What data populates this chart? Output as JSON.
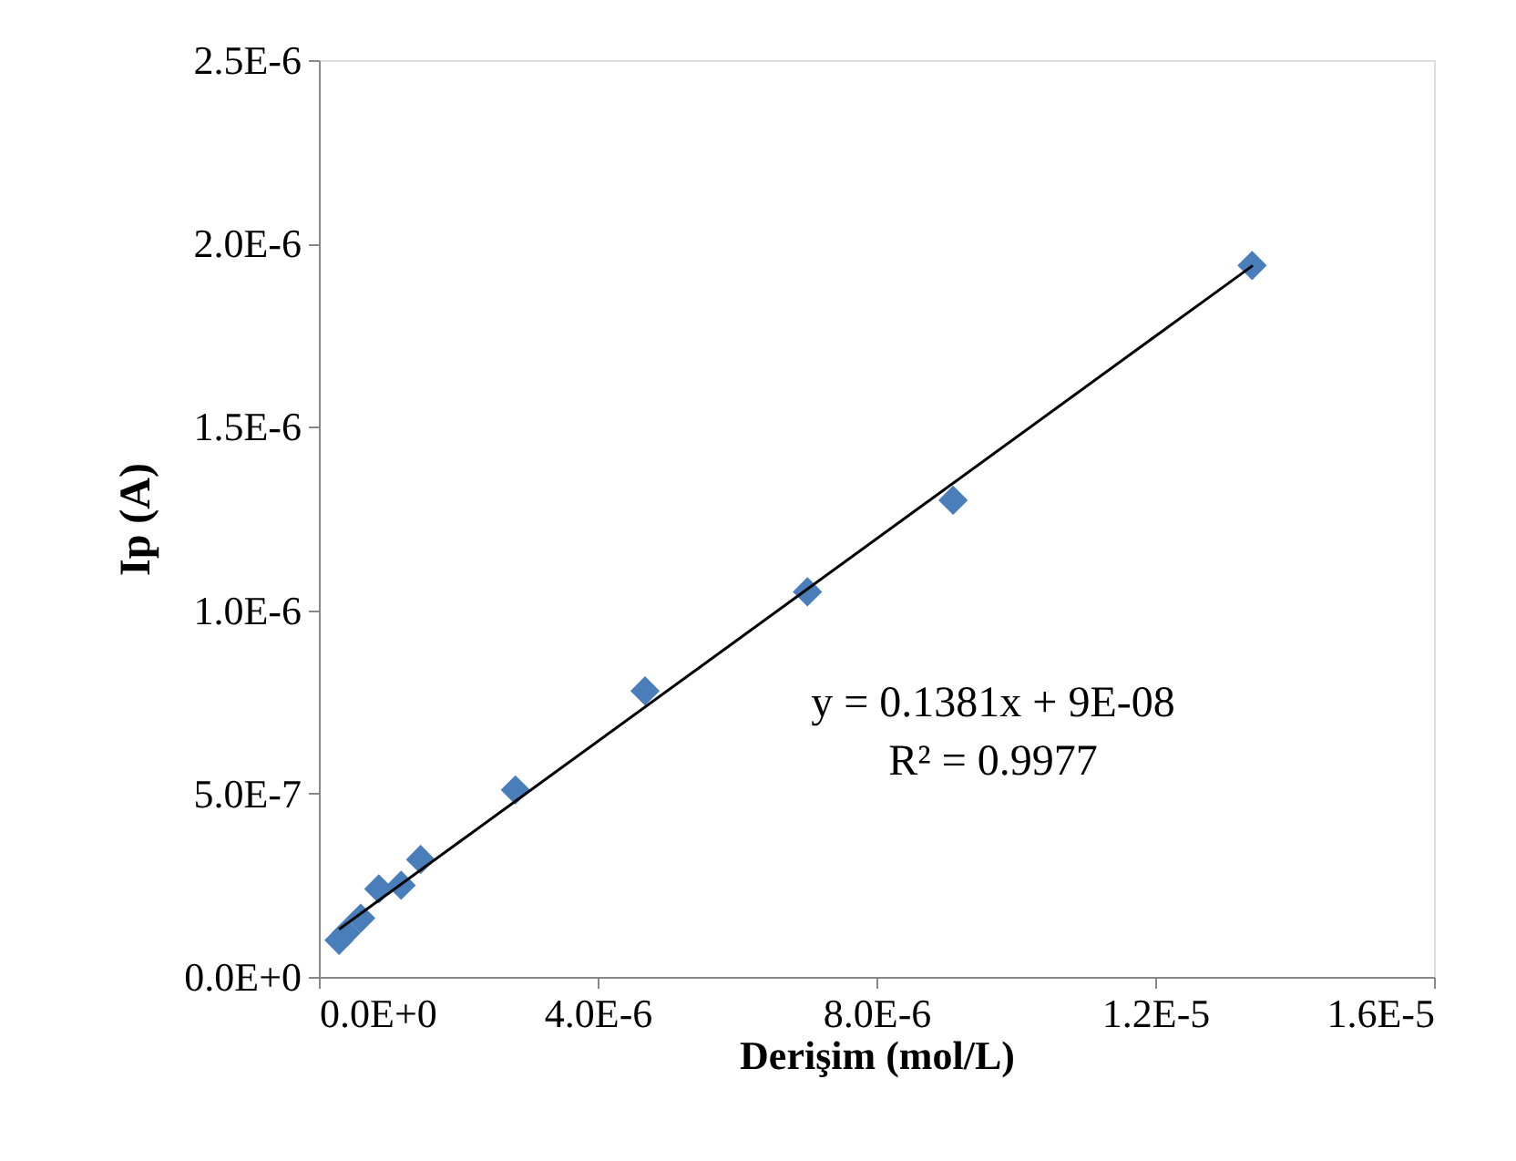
{
  "chart_data": {
    "type": "scatter",
    "xlabel": "Derişim (mol/L)",
    "ylabel": "Ip (A)",
    "series": [
      {
        "color": "#4a7ebb",
        "marker": "diamond",
        "x": [
          2.9e-07,
          3.9e-07,
          6e-07,
          8.6e-07,
          1.18e-06,
          1.46e-06,
          2.82e-06,
          4.68e-06,
          7.01e-06,
          9.1e-06,
          1.339e-05
        ],
        "values": [
          1e-07,
          1.2e-07,
          1.6e-07,
          2.4e-07,
          2.5e-07,
          3.2e-07,
          5.1e-07,
          7.8e-07,
          1.05e-06,
          1.3e-06,
          1.94e-06
        ]
      },
      {
        "type": "line",
        "color": "#000000",
        "marker": "none",
        "x": [
          2.9e-07,
          1.34e-05
        ],
        "values": [
          1.3e-07,
          1.94e-06
        ]
      }
    ],
    "xlim": [
      0,
      1.6e-05
    ],
    "xticks": [
      {
        "value": 0,
        "label": "0.0E+0"
      },
      {
        "value": 4e-06,
        "label": "4.0E-6"
      },
      {
        "value": 8e-06,
        "label": "8.0E-6"
      },
      {
        "value": 1.2e-05,
        "label": "1.2E-5"
      },
      {
        "value": 1.6e-05,
        "label": "1.6E-5"
      }
    ],
    "ylim": [
      0,
      2.5e-06
    ],
    "yticks": [
      {
        "value": 0,
        "label": "0.0E+0"
      },
      {
        "value": 5e-07,
        "label": "5.0E-7"
      },
      {
        "value": 1e-06,
        "label": "1.0E-6"
      },
      {
        "value": 1.5e-06,
        "label": "1.5E-6"
      },
      {
        "value": 2e-06,
        "label": "2.0E-6"
      },
      {
        "value": 2.5e-06,
        "label": "2.5E-6"
      }
    ],
    "annotations": [
      "y = 0.1381x + 9E-08",
      "R² = 0.9977"
    ],
    "grid": false
  }
}
